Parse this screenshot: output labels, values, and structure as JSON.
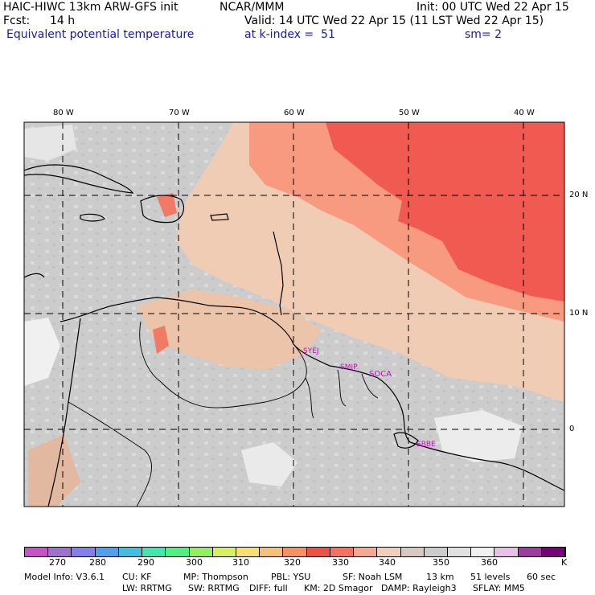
{
  "header": {
    "model_title": "HAIC-HIWC 13km ARW-GFS init",
    "org": "NCAR/MMM",
    "init": "Init: 00 UTC Wed 22 Apr 15",
    "fcst_label": "Fcst:",
    "fcst_value": "14 h",
    "valid": "Valid: 14 UTC Wed 22 Apr 15 (11 LST Wed 22 Apr 15)",
    "field": "Equivalent potential temperature",
    "level": "at k-index =  51",
    "smoothing": "sm= 2"
  },
  "map": {
    "lon_labels": [
      "80 W",
      "70 W",
      "60 W",
      "50 W",
      "40 W"
    ],
    "lat_labels": [
      "20 N",
      "10 N",
      "0"
    ],
    "stations": [
      "SYEJ",
      "SMJP",
      "SOCA",
      "SBBE"
    ],
    "station_color": "#d000d0"
  },
  "colorbar": {
    "colors": [
      "#c850c8",
      "#a070d0",
      "#8080f0",
      "#50a0f0",
      "#40c0e0",
      "#40e8b0",
      "#50f080",
      "#90f060",
      "#d8f060",
      "#f8e070",
      "#f8c070",
      "#f89060",
      "#f05048",
      "#f87060",
      "#f8a890",
      "#f0d0b8",
      "#d8c8c0",
      "#cccccc",
      "#e0e0e0",
      "#f0f0f0",
      "#e8c0e8",
      "#a03ca0",
      "#780078"
    ],
    "labels": [
      "270",
      "280",
      "290",
      "300",
      "310",
      "320",
      "330",
      "340",
      "350",
      "360"
    ],
    "unit": "K"
  },
  "footer": {
    "line1": [
      "Model Info: V3.6.1",
      "CU: KF",
      "MP: Thompson",
      "PBL: YSU",
      "SF: Noah LSM",
      "13 km",
      "51 levels",
      "60 sec"
    ],
    "line2": [
      "LW: RRTMG",
      "SW: RRTMG",
      "DIFF: full",
      "KM: 2D Smagor",
      "DAMP: Rayleigh3",
      "SFLAY: MM5"
    ]
  },
  "palette": {
    "red": "#f05a50",
    "salmon": "#f89a80",
    "peach": "#f0ccb4",
    "tan": "#dcc0b0",
    "gray": "#cccccc",
    "light": "#f0f0f0",
    "coast": "#000000",
    "grid": "#000000"
  }
}
